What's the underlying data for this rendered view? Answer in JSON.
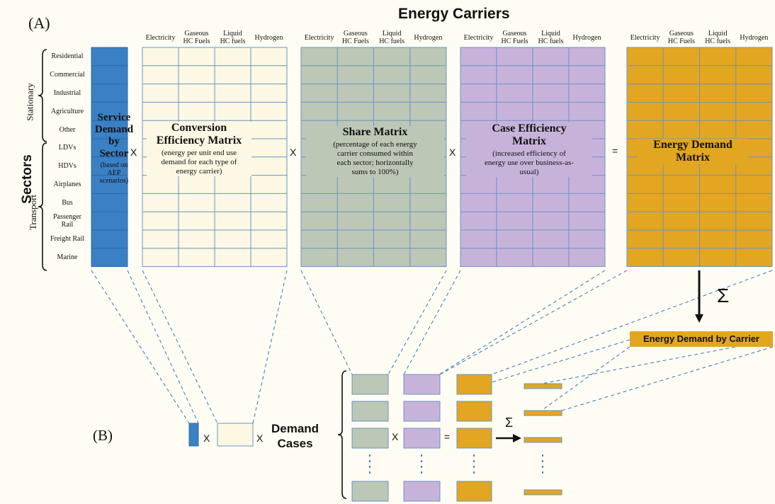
{
  "panel_a_label": "(A)",
  "panel_b_label": "(B)",
  "energy_carriers_title": "Energy Carriers",
  "sectors_title": "Sectors",
  "group_stationary": "Stationary",
  "group_transport": "Transport",
  "carriers": [
    "Electricity",
    "Gaseous\nHC Fuels",
    "Liquid\nHC fuels",
    "Hydrogen"
  ],
  "sectors": [
    "Residential",
    "Commercial",
    "Industrial",
    "Agriculture",
    "Other",
    "LDVs",
    "HDVs",
    "Airplanes",
    "Bus",
    "Passenger\nRail",
    "Freight Rail",
    "Marine"
  ],
  "service_demand": {
    "title": "Service\nDemand\nby\nSector",
    "subtitle": "(based on\nAEP\nscenarios)"
  },
  "conversion_matrix": {
    "title": "Conversion\nEfficiency Matrix",
    "subtitle": "(energy per unit end use\ndemand for each type of\nenergy carrier)"
  },
  "share_matrix": {
    "title": "Share Matrix",
    "subtitle": "(percentage of each energy\ncarrier consumed within\neach sector; horizontally\nsums to 100%)"
  },
  "case_matrix": {
    "title": "Case Efficiency\nMatrix",
    "subtitle": "(increased efficiency of\nenergy use over business-as-\nusual)"
  },
  "demand_matrix": {
    "title": "Energy Demand\nMatrix"
  },
  "energy_by_carrier": "Energy Demand by Carrier",
  "demand_cases": "Demand\nCases",
  "op_times": "X",
  "op_equals": "=",
  "sum_symbol": "Σ",
  "colors": {
    "service": "#3a80c4",
    "conversion": "#fdf8e3",
    "share": "#bcc7b6",
    "case": "#c7b3da",
    "demand": "#e3a620",
    "grid": "#6a93c6",
    "dash": "#3f7fcc"
  }
}
